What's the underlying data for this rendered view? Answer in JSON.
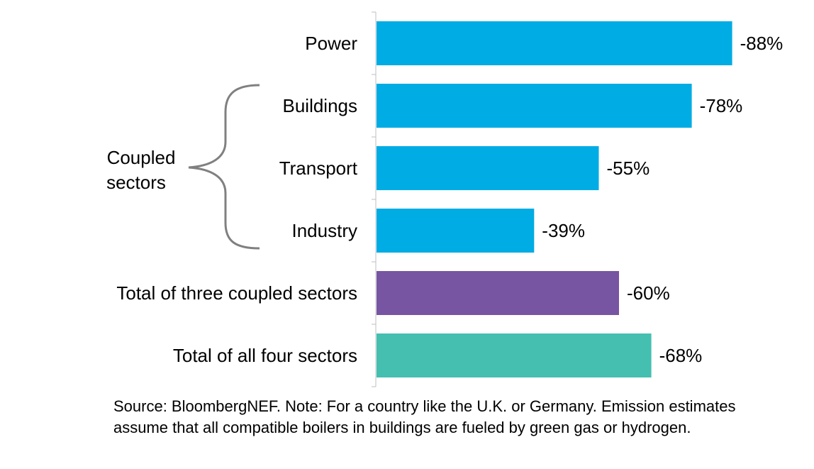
{
  "chart_data": {
    "type": "bar",
    "orientation": "horizontal",
    "categories": [
      "Power",
      "Buildings",
      "Transport",
      "Industry",
      "Total of three coupled sectors",
      "Total of all four sectors"
    ],
    "values": [
      -88,
      -78,
      -55,
      -39,
      -60,
      -68
    ],
    "value_labels": [
      "-88%",
      "-78%",
      "-55%",
      "-39%",
      "-60%",
      "-68%"
    ],
    "bar_colors": [
      "#00ACE4",
      "#00ACE4",
      "#00ACE4",
      "#00ACE4",
      "#7755A3",
      "#44BFB0"
    ],
    "xlim": [
      0,
      -100
    ],
    "grid": false,
    "legend": "none"
  },
  "brace": {
    "label_lines": [
      "Coupled",
      "sectors"
    ],
    "color": "#808080"
  },
  "source_note": "Source: BloombergNEF. Note: For a country like the U.K. or Germany. Emission estimates assume that all compatible boilers in buildings are fueled by green gas or hydrogen."
}
